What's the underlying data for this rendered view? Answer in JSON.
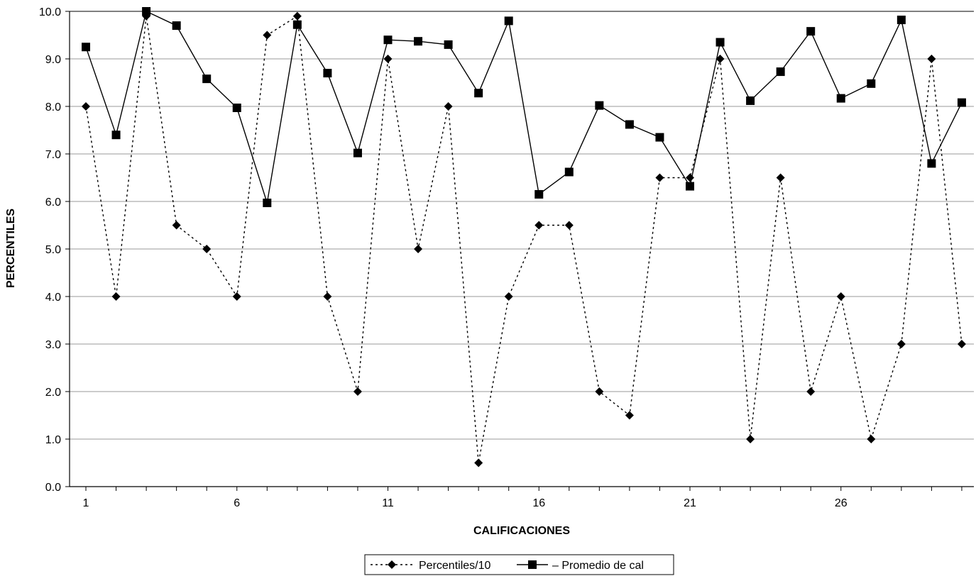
{
  "chart_data": {
    "type": "line",
    "xlabel": "CALIFICACIONES",
    "ylabel": "PERCENTILES",
    "ylim": [
      0,
      10
    ],
    "yticks": [
      "0.0",
      "1.0",
      "2.0",
      "3.0",
      "4.0",
      "5.0",
      "6.0",
      "7.0",
      "8.0",
      "9.0",
      "10.0"
    ],
    "xtick_labels": [
      "1",
      "6",
      "11",
      "16",
      "21",
      "26"
    ],
    "x": [
      1,
      2,
      3,
      4,
      5,
      6,
      7,
      8,
      9,
      10,
      11,
      12,
      13,
      14,
      15,
      16,
      17,
      18,
      19,
      20,
      21,
      22,
      23,
      24,
      25,
      26,
      27,
      28,
      29,
      30
    ],
    "grid": "horizontal",
    "legend_position": "bottom",
    "series": [
      {
        "name": "Percentiles/10",
        "line_style": "dotted",
        "marker": "diamond",
        "values": [
          8.0,
          4.0,
          9.9,
          5.5,
          5.0,
          4.0,
          9.5,
          9.9,
          4.0,
          2.0,
          9.0,
          5.0,
          8.0,
          0.5,
          4.0,
          5.5,
          5.5,
          2.0,
          1.5,
          6.5,
          6.5,
          9.0,
          1.0,
          6.5,
          2.0,
          4.0,
          1.0,
          3.0,
          9.0,
          3.0
        ]
      },
      {
        "name": "Promedio de cal",
        "line_style": "solid",
        "marker": "square",
        "values": [
          9.25,
          7.4,
          10.0,
          9.7,
          8.58,
          7.97,
          5.97,
          9.72,
          8.7,
          7.02,
          9.4,
          9.37,
          9.3,
          8.28,
          9.8,
          6.15,
          6.62,
          8.02,
          7.62,
          7.35,
          6.32,
          9.35,
          8.12,
          8.73,
          9.58,
          8.17,
          8.48,
          9.82,
          6.8,
          8.08
        ]
      }
    ]
  }
}
